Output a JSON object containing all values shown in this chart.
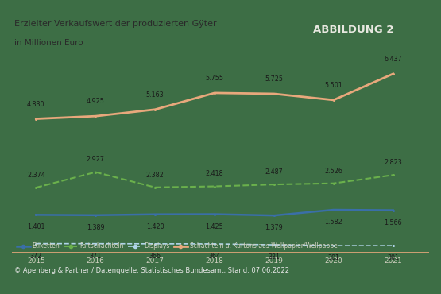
{
  "years": [
    2015,
    2016,
    2017,
    2018,
    2019,
    2020,
    2021
  ],
  "series": {
    "Etiketten": [
      1401,
      1389,
      1420,
      1425,
      1379,
      1582,
      1566
    ],
    "Faltschachteln": [
      2374,
      2927,
      2382,
      2418,
      2487,
      2526,
      2823
    ],
    "Displays": [
      372,
      371,
      366,
      364,
      331,
      301,
      301
    ],
    "Schachteln und Kartons aus Wellpapier/Wellpappe": [
      4830,
      4925,
      5163,
      5755,
      5725,
      5501,
      6437
    ]
  },
  "colors": {
    "Etiketten": "#3a6fa8",
    "Faltschachteln": "#6ab04c",
    "Displays": "#b0d4e8",
    "Schachteln und Kartons aus Wellpapier/Wellpappe": "#e8a87c"
  },
  "linestyles": {
    "Etiketten": "solid",
    "Faltschachteln": "dashed",
    "Displays": "dashed",
    "Schachteln und Kartons aus Wellpapier/Wellpappe": "solid"
  },
  "linewidths": {
    "Etiketten": 1.8,
    "Faltschachteln": 1.5,
    "Displays": 1.2,
    "Schachteln und Kartons aus Wellpapier/Wellpappe": 2.0
  },
  "title_line1": "Erzielter Verkaufswert der produzierten Gÿter",
  "title_line2": "in Millionen Euro",
  "abbildung": "ABBILDUNG 2",
  "footer": "© Apenberg & Partner / Datenquelle: Statistisches Bundesamt, Stand: 07.06.2022",
  "bg_color": "#3d6e45",
  "header_bg": "#c8b896",
  "abbildung_bg": "#5e6b5e",
  "footer_bg": "#5a5a5a",
  "ylim": [
    0,
    7200
  ],
  "data_labels": {
    "Etiketten": [
      "1.401",
      "1.389",
      "1.420",
      "1.425",
      "1.379",
      "1.582",
      "1.566"
    ],
    "Faltschachteln": [
      "2.374",
      "2.927",
      "2.382",
      "2.418",
      "2.487",
      "2.526",
      "2.823"
    ],
    "Displays": [
      "372",
      "371",
      "366",
      "364",
      "331",
      "301",
      "301"
    ],
    "Schachteln und Kartons aus Wellpapier/Wellpappe": [
      "4.830",
      "4.925",
      "5.163",
      "5.755",
      "5.725",
      "5.501",
      "6.437"
    ]
  },
  "legend_labels": {
    "Etiketten": "Etiketten",
    "Faltschachteln": "Faltschachteln",
    "Displays": "Displays",
    "Schachteln und Kartons aus Wellpapier/Wellpappe": "Schachteln u. Kartons aus Wellpapier/Wellpappe"
  },
  "divider_color": "#e8a87c",
  "label_color": "#1a1a1a",
  "tick_color": "#d0d0c0",
  "label_fontsize": 5.8,
  "tick_fontsize": 6.5
}
